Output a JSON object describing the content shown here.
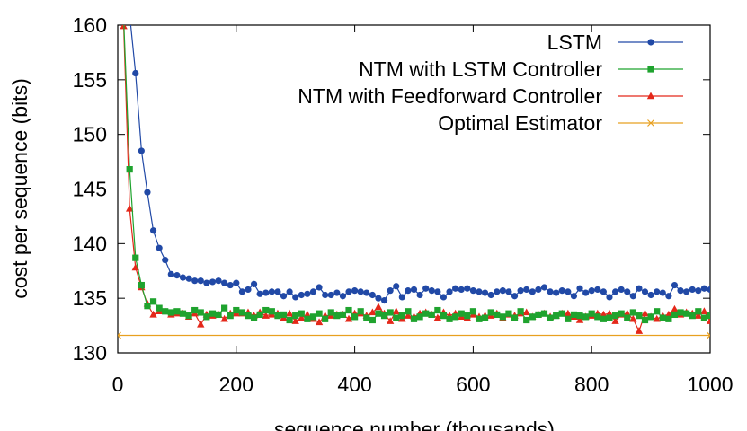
{
  "chart_data": {
    "type": "line",
    "xlabel": "sequence number (thousands)",
    "ylabel": "cost per sequence (bits)",
    "xlim": [
      0,
      1000
    ],
    "ylim": [
      130,
      160
    ],
    "xticks": [
      "0",
      "200",
      "400",
      "600",
      "800",
      "1000"
    ],
    "yticks": [
      "130",
      "135",
      "140",
      "145",
      "150",
      "155",
      "160"
    ],
    "grid": false,
    "legend_position": "top-right",
    "series": [
      {
        "name": "LSTM",
        "color": "#2149a6",
        "marker": "circle",
        "x": [
          20,
          30,
          40,
          50,
          60,
          70,
          80,
          90,
          100,
          110,
          120,
          130,
          140,
          150,
          160,
          170,
          180,
          190,
          200,
          210,
          220,
          230,
          240,
          250,
          260,
          270,
          280,
          290,
          300,
          310,
          320,
          330,
          340,
          350,
          360,
          370,
          380,
          390,
          400,
          410,
          420,
          430,
          440,
          450,
          460,
          470,
          480,
          490,
          500,
          510,
          520,
          530,
          540,
          550,
          560,
          570,
          580,
          590,
          600,
          610,
          620,
          630,
          640,
          650,
          660,
          670,
          680,
          690,
          700,
          710,
          720,
          730,
          740,
          750,
          760,
          770,
          780,
          790,
          800,
          810,
          820,
          830,
          840,
          850,
          860,
          870,
          880,
          890,
          900,
          910,
          920,
          930,
          940,
          950,
          960,
          970,
          980,
          990,
          1000
        ],
        "y": [
          161.0,
          155.6,
          148.5,
          144.7,
          141.2,
          139.6,
          138.5,
          137.2,
          137.1,
          136.9,
          136.8,
          136.6,
          136.6,
          136.4,
          136.5,
          136.6,
          136.4,
          136.2,
          136.4,
          135.6,
          135.8,
          136.3,
          135.4,
          135.5,
          135.6,
          135.6,
          135.2,
          135.6,
          135.1,
          135.3,
          135.4,
          135.6,
          136.0,
          135.3,
          135.3,
          135.5,
          135.2,
          135.6,
          135.7,
          135.6,
          135.5,
          135.3,
          135.0,
          134.8,
          135.7,
          136.1,
          135.1,
          135.7,
          135.8,
          135.3,
          135.9,
          135.7,
          135.6,
          135.1,
          135.6,
          135.9,
          135.8,
          135.9,
          135.7,
          135.6,
          135.5,
          135.3,
          135.6,
          135.7,
          135.6,
          135.2,
          135.7,
          135.8,
          135.6,
          135.8,
          136.0,
          135.6,
          135.5,
          135.7,
          135.6,
          135.2,
          135.9,
          135.5,
          135.7,
          135.8,
          135.6,
          135.1,
          135.6,
          135.8,
          135.6,
          135.2,
          135.9,
          135.6,
          135.3,
          135.6,
          135.5,
          135.2,
          136.2,
          135.7,
          135.6,
          135.8,
          135.7,
          135.9,
          135.8
        ]
      },
      {
        "name": "NTM with LSTM Controller",
        "color": "#1fa32e",
        "marker": "square",
        "x": [
          10,
          20,
          30,
          40,
          50,
          60,
          70,
          80,
          90,
          100,
          110,
          120,
          130,
          140,
          150,
          160,
          170,
          180,
          190,
          200,
          210,
          220,
          230,
          240,
          250,
          260,
          270,
          280,
          290,
          300,
          310,
          320,
          330,
          340,
          350,
          360,
          370,
          380,
          390,
          400,
          410,
          420,
          430,
          440,
          450,
          460,
          470,
          480,
          490,
          500,
          510,
          520,
          530,
          540,
          550,
          560,
          570,
          580,
          590,
          600,
          610,
          620,
          630,
          640,
          650,
          660,
          670,
          680,
          690,
          700,
          710,
          720,
          730,
          740,
          750,
          760,
          770,
          780,
          790,
          800,
          810,
          820,
          830,
          840,
          850,
          860,
          870,
          880,
          890,
          900,
          910,
          920,
          930,
          940,
          950,
          960,
          970,
          980,
          990,
          1000
        ],
        "y": [
          160.5,
          146.8,
          138.7,
          136.2,
          134.3,
          134.7,
          134.1,
          133.8,
          133.7,
          133.8,
          133.6,
          133.4,
          133.9,
          133.7,
          133.3,
          133.6,
          133.5,
          134.1,
          133.4,
          133.9,
          133.7,
          133.4,
          133.2,
          133.5,
          133.9,
          133.8,
          133.4,
          133.5,
          133.0,
          133.4,
          133.6,
          133.1,
          133.3,
          133.6,
          133.1,
          133.7,
          133.4,
          133.5,
          133.9,
          133.3,
          133.8,
          133.2,
          133.0,
          133.6,
          133.4,
          133.7,
          133.2,
          133.4,
          133.8,
          133.1,
          133.3,
          133.6,
          133.5,
          133.9,
          133.4,
          133.1,
          133.3,
          133.6,
          133.4,
          133.8,
          133.1,
          133.2,
          133.7,
          133.5,
          133.3,
          133.6,
          133.2,
          133.8,
          133.0,
          133.3,
          133.5,
          133.6,
          133.2,
          133.4,
          133.6,
          133.1,
          133.5,
          133.4,
          133.3,
          133.6,
          133.3,
          133.1,
          133.2,
          133.4,
          133.6,
          133.2,
          133.7,
          133.4,
          133.0,
          133.3,
          133.8,
          133.2,
          133.1,
          133.5,
          133.7,
          133.6,
          133.4,
          133.8,
          133.2,
          133.4
        ]
      },
      {
        "name": "NTM with Feedforward Controller",
        "color": "#e4281a",
        "marker": "triangle",
        "x": [
          10,
          20,
          30,
          40,
          50,
          60,
          70,
          80,
          90,
          100,
          110,
          120,
          130,
          140,
          150,
          160,
          170,
          180,
          190,
          200,
          210,
          220,
          230,
          240,
          250,
          260,
          270,
          280,
          290,
          300,
          310,
          320,
          330,
          340,
          350,
          360,
          370,
          380,
          390,
          400,
          410,
          420,
          430,
          440,
          450,
          460,
          470,
          480,
          490,
          500,
          510,
          520,
          530,
          540,
          550,
          560,
          570,
          580,
          590,
          600,
          610,
          620,
          630,
          640,
          650,
          660,
          670,
          680,
          690,
          700,
          710,
          720,
          730,
          740,
          750,
          760,
          770,
          780,
          790,
          800,
          810,
          820,
          830,
          840,
          850,
          860,
          870,
          880,
          890,
          900,
          910,
          920,
          930,
          940,
          950,
          960,
          970,
          980,
          990,
          1000
        ],
        "y": [
          159.9,
          143.2,
          137.8,
          136.0,
          134.5,
          133.5,
          133.8,
          133.8,
          133.5,
          133.6,
          133.6,
          133.3,
          133.6,
          132.6,
          133.5,
          133.4,
          133.5,
          133.1,
          133.6,
          133.6,
          133.6,
          133.7,
          133.4,
          133.7,
          133.4,
          133.5,
          133.6,
          133.2,
          133.6,
          132.9,
          133.2,
          133.5,
          133.1,
          132.8,
          133.4,
          133.4,
          133.5,
          133.5,
          133.1,
          133.6,
          133.6,
          133.4,
          133.7,
          134.2,
          133.6,
          132.9,
          133.8,
          133.1,
          133.4,
          133.3,
          133.6,
          133.7,
          133.5,
          133.2,
          133.7,
          133.4,
          133.6,
          133.3,
          133.2,
          133.5,
          133.3,
          133.4,
          133.4,
          133.6,
          133.2,
          133.5,
          133.4,
          133.6,
          133.7,
          133.3,
          133.5,
          133.6,
          133.3,
          133.4,
          133.6,
          133.6,
          133.3,
          133.0,
          133.3,
          133.4,
          133.6,
          133.5,
          133.6,
          132.9,
          133.5,
          133.6,
          133.1,
          132.0,
          133.6,
          133.3,
          133.1,
          133.4,
          133.5,
          134.0,
          133.5,
          133.7,
          133.6,
          133.4,
          133.8,
          132.9
        ]
      },
      {
        "name": "Optimal Estimator",
        "color": "#e8a020",
        "marker": "x",
        "x": [
          0,
          1000
        ],
        "y": [
          131.6,
          131.6
        ]
      }
    ]
  }
}
